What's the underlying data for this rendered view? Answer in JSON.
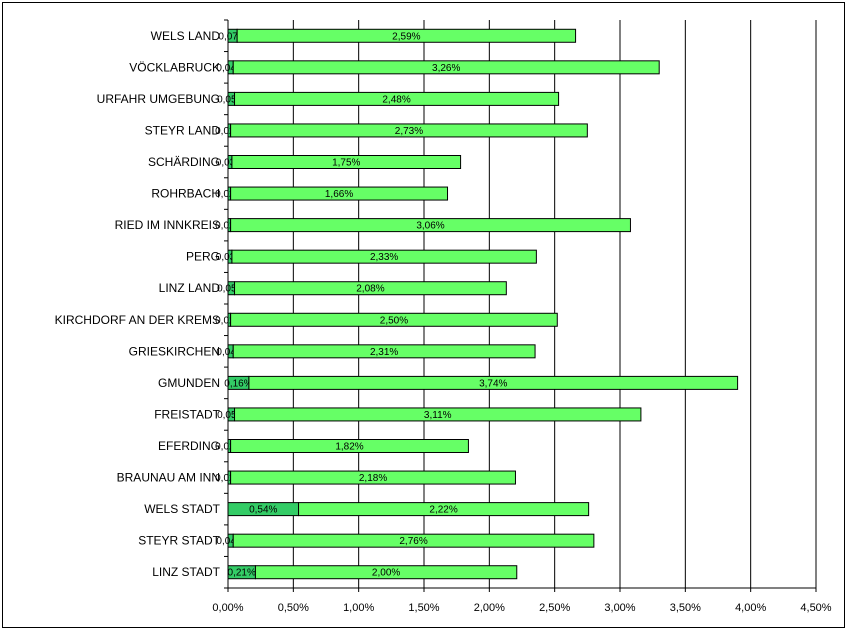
{
  "chart_data": {
    "type": "bar",
    "orientation": "horizontal",
    "stacked": true,
    "categories": [
      "WELS LAND",
      "VÖCKLABRUCK",
      "URFAHR UMGEBUNG",
      "STEYR LAND",
      "SCHÄRDING",
      "ROHRBACH",
      "RIED IM INNKREIS",
      "PERG",
      "LINZ LAND",
      "KIRCHDORF AN DER KREMS",
      "GRIESKIRCHEN",
      "GMUNDEN",
      "FREISTADT",
      "EFERDING",
      "BRAUNAU AM INN",
      "WELS STADT",
      "STEYR STADT",
      "LINZ STADT"
    ],
    "series": [
      {
        "color": "#33cc66",
        "values": [
          0.07,
          0.04,
          0.05,
          0.02,
          0.03,
          0.02,
          0.02,
          0.03,
          0.05,
          0.02,
          0.04,
          0.16,
          0.05,
          0.02,
          0.02,
          0.54,
          0.04,
          0.21
        ],
        "labels": [
          "0,07%",
          "0,04%",
          "0,05%",
          "0,02%",
          "0,03%",
          "0,02%",
          "0,02%",
          "0,03%",
          "0,05%",
          "0,02%",
          "0,04%",
          "0,16%",
          "0,05%",
          "0,02%",
          "0,02%",
          "0,54%",
          "0,04%",
          "0,21%"
        ]
      },
      {
        "color": "#66ff66",
        "values": [
          2.59,
          3.26,
          2.48,
          2.73,
          1.75,
          1.66,
          3.06,
          2.33,
          2.08,
          2.5,
          2.31,
          3.74,
          3.11,
          1.82,
          2.18,
          2.22,
          2.76,
          2.0
        ],
        "labels": [
          "2,59%",
          "3,26%",
          "2,48%",
          "2,73%",
          "1,75%",
          "1,66%",
          "3,06%",
          "2,33%",
          "2,08%",
          "2,50%",
          "2,31%",
          "3,74%",
          "3,11%",
          "1,82%",
          "2,18%",
          "2,22%",
          "2,76%",
          "2,00%"
        ]
      }
    ],
    "xlim": [
      0,
      4.5
    ],
    "xticks": [
      "0,00%",
      "0,50%",
      "1,00%",
      "1,50%",
      "2,00%",
      "2,50%",
      "3,00%",
      "3,50%",
      "4,00%",
      "4,50%"
    ],
    "grid": true,
    "legend": "none"
  }
}
